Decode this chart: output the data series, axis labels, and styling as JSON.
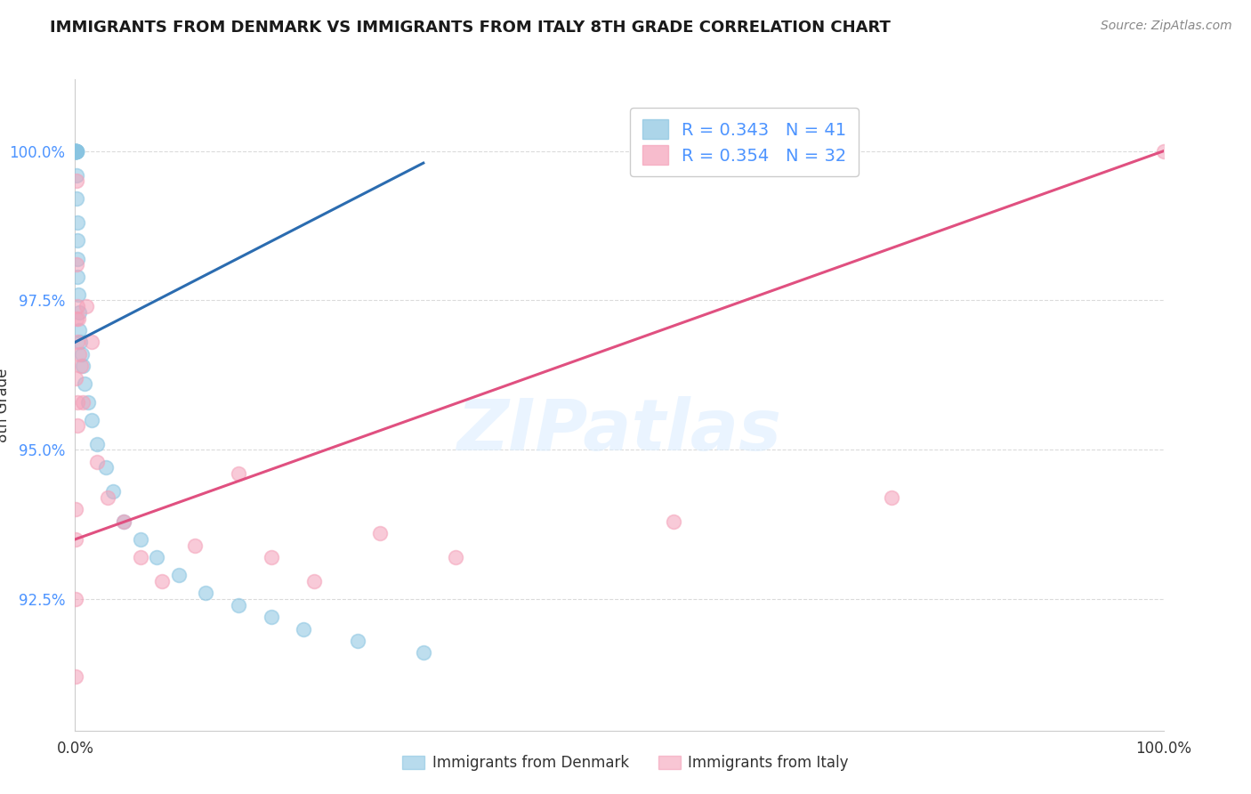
{
  "title": "IMMIGRANTS FROM DENMARK VS IMMIGRANTS FROM ITALY 8TH GRADE CORRELATION CHART",
  "source": "Source: ZipAtlas.com",
  "ylabel": "8th Grade",
  "legend_denmark": "R = 0.343   N = 41",
  "legend_italy": "R = 0.354   N = 32",
  "denmark_color": "#89c4e1",
  "italy_color": "#f4a0b8",
  "denmark_line_color": "#2b6cb0",
  "italy_line_color": "#e05080",
  "grid_color": "#cccccc",
  "tick_color": "#4d94ff",
  "background_color": "#ffffff",
  "xlim": [
    0.0,
    100.0
  ],
  "ylim": [
    90.3,
    101.2
  ],
  "watermark_text": "ZIPatlas",
  "bottom_legend_denmark": "Immigrants from Denmark",
  "bottom_legend_italy": "Immigrants from Italy",
  "denmark_x": [
    0.04,
    0.05,
    0.06,
    0.07,
    0.07,
    0.08,
    0.08,
    0.09,
    0.1,
    0.1,
    0.11,
    0.12,
    0.13,
    0.14,
    0.15,
    0.18,
    0.2,
    0.22,
    0.25,
    0.3,
    0.35,
    0.4,
    0.5,
    0.6,
    0.7,
    0.9,
    1.2,
    1.5,
    2.0,
    2.8,
    3.5,
    4.5,
    6.0,
    7.5,
    9.5,
    12.0,
    15.0,
    18.0,
    21.0,
    26.0,
    32.0
  ],
  "denmark_y": [
    100.0,
    100.0,
    100.0,
    100.0,
    100.0,
    100.0,
    100.0,
    100.0,
    100.0,
    100.0,
    100.0,
    100.0,
    100.0,
    99.6,
    99.2,
    98.8,
    98.5,
    98.2,
    97.9,
    97.6,
    97.3,
    97.0,
    96.8,
    96.6,
    96.4,
    96.1,
    95.8,
    95.5,
    95.1,
    94.7,
    94.3,
    93.8,
    93.5,
    93.2,
    92.9,
    92.6,
    92.4,
    92.2,
    92.0,
    91.8,
    91.6
  ],
  "italy_x": [
    0.04,
    0.07,
    0.08,
    0.1,
    0.12,
    0.15,
    0.18,
    0.2,
    0.22,
    0.25,
    0.3,
    0.4,
    0.55,
    0.7,
    1.0,
    1.5,
    2.0,
    3.0,
    4.5,
    6.0,
    8.0,
    11.0,
    15.0,
    18.0,
    22.0,
    28.0,
    35.0,
    55.0,
    75.0,
    100.0,
    0.05,
    0.09
  ],
  "italy_y": [
    91.2,
    93.5,
    96.2,
    98.1,
    99.5,
    97.2,
    96.8,
    95.8,
    95.4,
    97.4,
    97.2,
    96.6,
    96.4,
    95.8,
    97.4,
    96.8,
    94.8,
    94.2,
    93.8,
    93.2,
    92.8,
    93.4,
    94.6,
    93.2,
    92.8,
    93.6,
    93.2,
    93.8,
    94.2,
    100.0,
    92.5,
    94.0
  ],
  "blue_line_x0": 0.0,
  "blue_line_y0": 96.8,
  "blue_line_x1": 32.0,
  "blue_line_y1": 99.8,
  "pink_line_x0": 0.0,
  "pink_line_y0": 93.5,
  "pink_line_x1": 100.0,
  "pink_line_y1": 100.0
}
